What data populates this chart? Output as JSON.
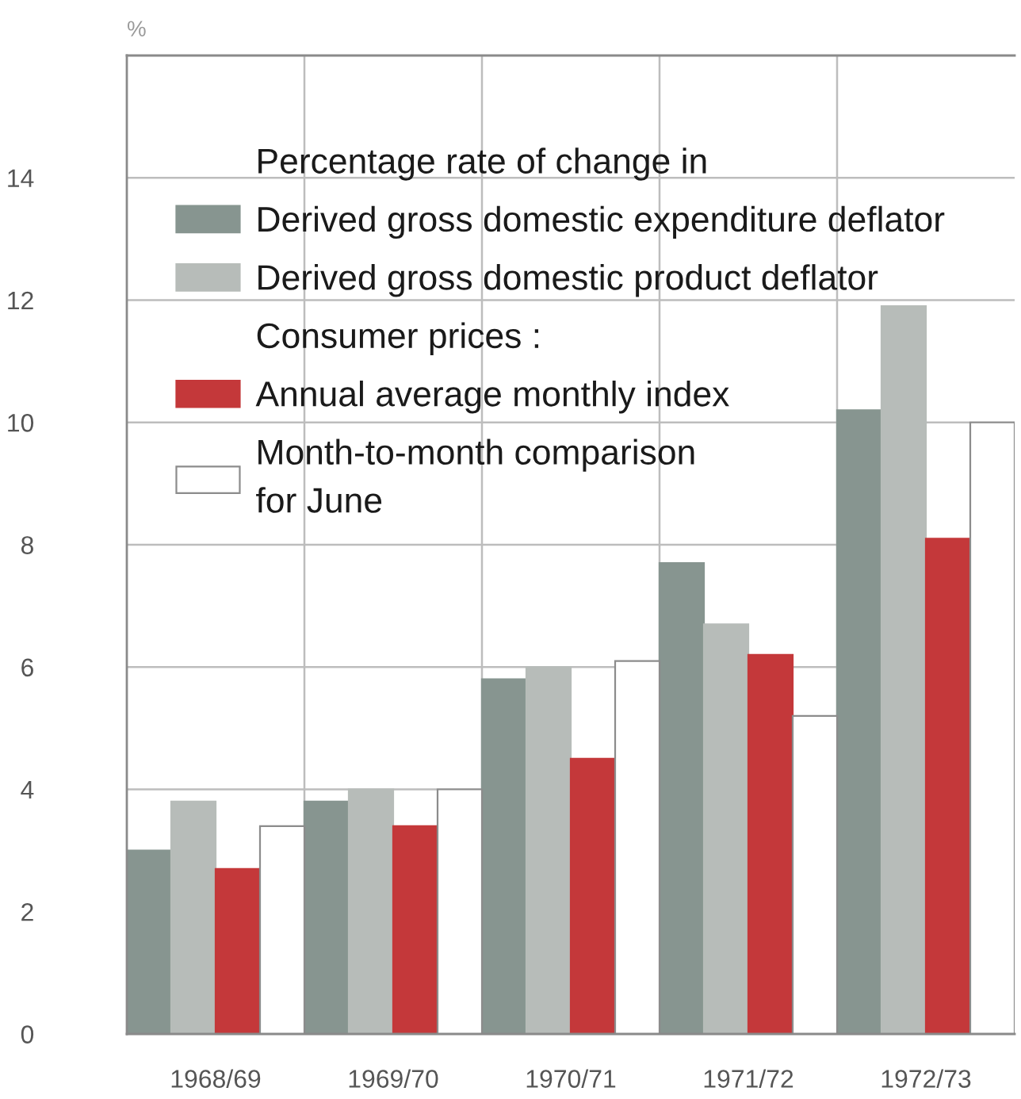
{
  "chart_data": {
    "type": "bar",
    "ylabel": "%",
    "legend_title": "Percentage rate of change in",
    "categories": [
      "1968/69",
      "1969/70",
      "1970/71",
      "1971/72",
      "1972/73"
    ],
    "series": [
      {
        "name": "Derived gross domestic expenditure deflator",
        "color": "#879590",
        "values": [
          3.0,
          3.8,
          5.8,
          7.7,
          10.2
        ]
      },
      {
        "name": "Derived gross domestic product deflator",
        "color": "#b7bcb9",
        "values": [
          3.8,
          4.0,
          6.0,
          6.7,
          11.9
        ]
      },
      {
        "name": "Annual average monthly index",
        "color": "#c4383a",
        "values": [
          2.7,
          3.4,
          4.5,
          6.2,
          8.1
        ]
      },
      {
        "name": "Month-to-month comparison\nfor June",
        "color": "#ffffff",
        "values": [
          3.4,
          4.0,
          6.1,
          5.2,
          10.0
        ]
      }
    ],
    "annotations": [
      "Consumer prices :"
    ],
    "ylim": [
      0,
      16
    ],
    "yticks": [
      0,
      2,
      4,
      6,
      8,
      10,
      12,
      14
    ],
    "grid": true,
    "legend": "top left"
  }
}
